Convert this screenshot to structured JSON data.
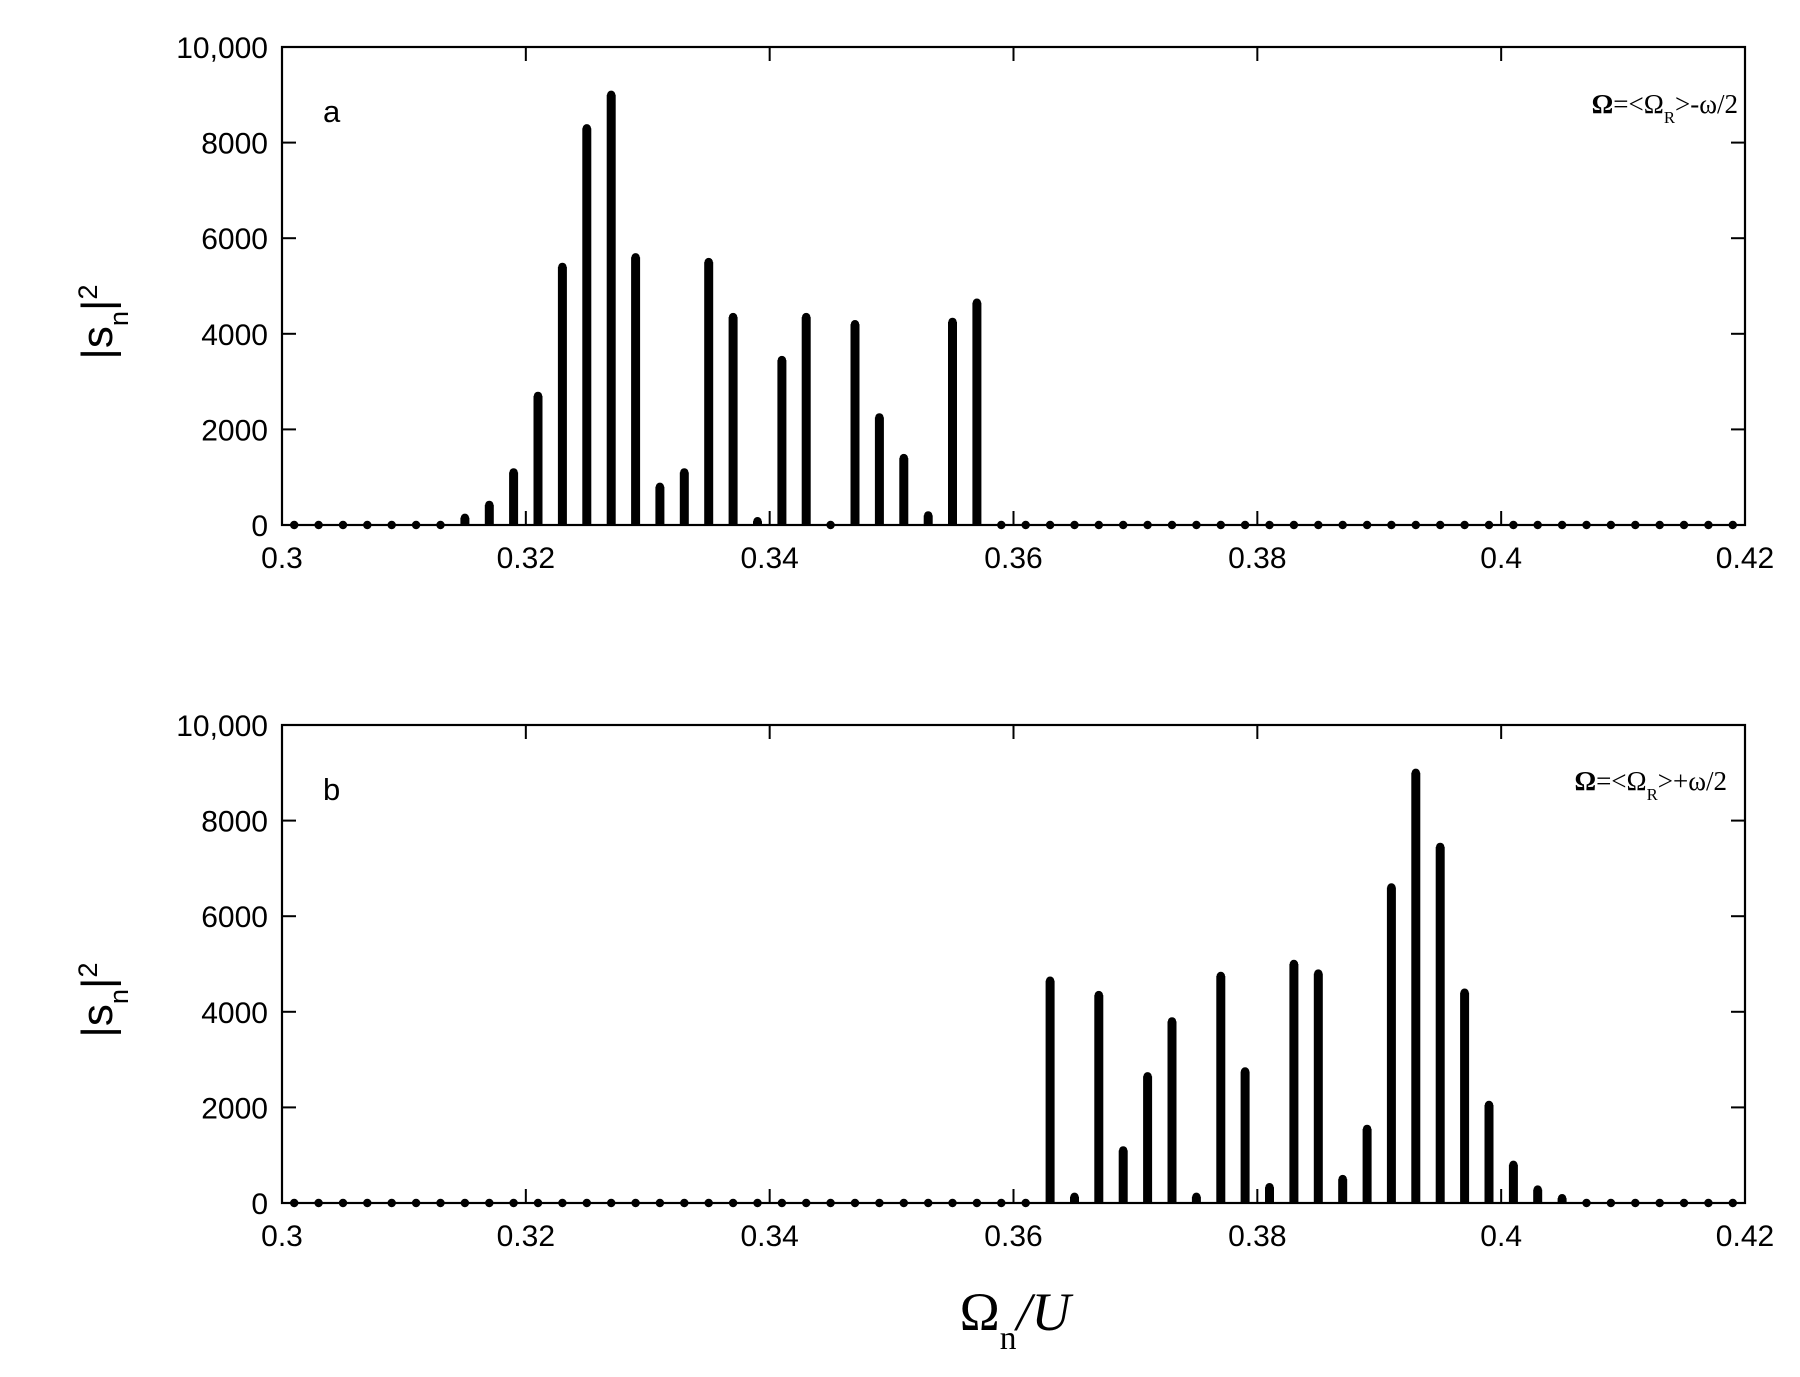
{
  "chart_data": [
    {
      "type": "bar",
      "panel_label": "a",
      "annotation": {
        "omega": "Ω",
        "rest": "=<Ω",
        "sub": "R",
        "tail": ">-ω/2"
      },
      "ylabel": {
        "main": "|s",
        "sub": "n",
        "tail": "|",
        "sup": "2"
      },
      "xlim": [
        0.3,
        0.42
      ],
      "ylim": [
        0,
        10000
      ],
      "xticks": [
        "0.3",
        "0.32",
        "0.34",
        "0.36",
        "0.38",
        "0.4",
        "0.42"
      ],
      "yticks": [
        "0",
        "2000",
        "4000",
        "6000",
        "8000",
        "10,000"
      ],
      "x": [
        0.301,
        0.303,
        0.305,
        0.307,
        0.309,
        0.311,
        0.313,
        0.315,
        0.317,
        0.319,
        0.321,
        0.323,
        0.325,
        0.327,
        0.329,
        0.331,
        0.333,
        0.335,
        0.337,
        0.339,
        0.341,
        0.343,
        0.345,
        0.347,
        0.349,
        0.351,
        0.353,
        0.355,
        0.357,
        0.359,
        0.361,
        0.363,
        0.365,
        0.367,
        0.369,
        0.371,
        0.373,
        0.375,
        0.377,
        0.379,
        0.381,
        0.383,
        0.385,
        0.387,
        0.389,
        0.391,
        0.393,
        0.395,
        0.397,
        0.399,
        0.401,
        0.403,
        0.405,
        0.407,
        0.409,
        0.411,
        0.413,
        0.415,
        0.417,
        0.419
      ],
      "values": [
        0,
        0,
        0,
        0,
        0,
        0,
        0,
        150,
        420,
        1100,
        2700,
        5400,
        8300,
        9000,
        5600,
        800,
        1100,
        5500,
        4350,
        80,
        3450,
        4350,
        0,
        4200,
        2250,
        1400,
        200,
        4250,
        4650,
        0,
        0,
        0,
        0,
        0,
        0,
        0,
        0,
        0,
        0,
        0,
        0,
        0,
        0,
        0,
        0,
        0,
        0,
        0,
        0,
        0,
        0,
        0,
        0,
        0,
        0,
        0,
        0,
        0,
        0,
        0
      ]
    },
    {
      "type": "bar",
      "panel_label": "b",
      "annotation": {
        "omega": "Ω",
        "rest": "=<Ω",
        "sub": "R",
        "tail": ">+ω/2"
      },
      "ylabel": {
        "main": "|s",
        "sub": "n",
        "tail": "|",
        "sup": "2"
      },
      "xlabel": {
        "main": "Ω",
        "sub": "n",
        "tail": "/U"
      },
      "xlim": [
        0.3,
        0.42
      ],
      "ylim": [
        0,
        10000
      ],
      "xticks": [
        "0.3",
        "0.32",
        "0.34",
        "0.36",
        "0.38",
        "0.4",
        "0.42"
      ],
      "yticks": [
        "0",
        "2000",
        "4000",
        "6000",
        "8000",
        "10,000"
      ],
      "x": [
        0.301,
        0.303,
        0.305,
        0.307,
        0.309,
        0.311,
        0.313,
        0.315,
        0.317,
        0.319,
        0.321,
        0.323,
        0.325,
        0.327,
        0.329,
        0.331,
        0.333,
        0.335,
        0.337,
        0.339,
        0.341,
        0.343,
        0.345,
        0.347,
        0.349,
        0.351,
        0.353,
        0.355,
        0.357,
        0.359,
        0.361,
        0.363,
        0.365,
        0.367,
        0.369,
        0.371,
        0.373,
        0.375,
        0.377,
        0.379,
        0.381,
        0.383,
        0.385,
        0.387,
        0.389,
        0.391,
        0.393,
        0.395,
        0.397,
        0.399,
        0.401,
        0.403,
        0.405,
        0.407,
        0.409,
        0.411,
        0.413,
        0.415,
        0.417,
        0.419
      ],
      "values": [
        0,
        0,
        0,
        0,
        0,
        0,
        0,
        0,
        0,
        0,
        0,
        0,
        0,
        0,
        0,
        0,
        0,
        0,
        0,
        0,
        0,
        0,
        0,
        0,
        0,
        0,
        0,
        0,
        0,
        0,
        0,
        4650,
        130,
        4350,
        1100,
        2650,
        3800,
        130,
        4750,
        2750,
        330,
        5000,
        4800,
        500,
        1550,
        6600,
        9000,
        7450,
        4400,
        2050,
        800,
        280,
        100,
        0,
        0,
        0,
        0,
        0,
        0,
        0
      ]
    }
  ]
}
